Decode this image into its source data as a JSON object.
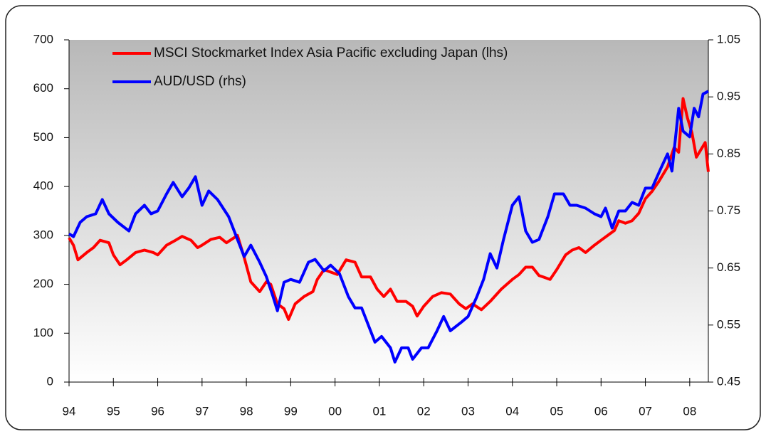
{
  "chart_data": {
    "type": "line",
    "xlim": [
      1994,
      2008.42
    ],
    "xticks": [
      {
        "value": 1994,
        "label": "94"
      },
      {
        "value": 1995,
        "label": "95"
      },
      {
        "value": 1996,
        "label": "96"
      },
      {
        "value": 1997,
        "label": "97"
      },
      {
        "value": 1998,
        "label": "98"
      },
      {
        "value": 1999,
        "label": "99"
      },
      {
        "value": 2000,
        "label": "00"
      },
      {
        "value": 2001,
        "label": "01"
      },
      {
        "value": 2002,
        "label": "02"
      },
      {
        "value": 2003,
        "label": "03"
      },
      {
        "value": 2004,
        "label": "04"
      },
      {
        "value": 2005,
        "label": "05"
      },
      {
        "value": 2006,
        "label": "06"
      },
      {
        "value": 2007,
        "label": "07"
      },
      {
        "value": 2008,
        "label": "08"
      }
    ],
    "ylim": [
      0,
      700
    ],
    "yticks": [
      0,
      100,
      200,
      300,
      400,
      500,
      600,
      700
    ],
    "y2lim": [
      0.45,
      1.05
    ],
    "y2ticks": [
      0.45,
      0.55,
      0.65,
      0.75,
      0.85,
      0.95,
      1.05
    ],
    "legend": "upper left",
    "series": [
      {
        "name": "MSCI Stockmarket Index Asia Pacific excluding Japan (lhs)",
        "color": "#ff0000",
        "axis": "y",
        "x": [
          1994.0,
          1994.1,
          1994.2,
          1994.4,
          1994.55,
          1994.7,
          1994.9,
          1995.0,
          1995.15,
          1995.3,
          1995.5,
          1995.7,
          1995.9,
          1996.0,
          1996.2,
          1996.4,
          1996.55,
          1996.75,
          1996.9,
          1997.0,
          1997.2,
          1997.4,
          1997.55,
          1997.8,
          1997.95,
          1998.1,
          1998.3,
          1998.45,
          1998.55,
          1998.7,
          1998.85,
          1998.95,
          1999.1,
          1999.3,
          1999.5,
          1999.6,
          1999.75,
          1999.9,
          2000.05,
          2000.25,
          2000.45,
          2000.6,
          2000.8,
          2000.95,
          2001.1,
          2001.25,
          2001.4,
          2001.6,
          2001.75,
          2001.85,
          2002.0,
          2002.2,
          2002.4,
          2002.6,
          2002.8,
          2002.95,
          2003.1,
          2003.3,
          2003.5,
          2003.75,
          2004.0,
          2004.15,
          2004.3,
          2004.45,
          2004.6,
          2004.85,
          2005.0,
          2005.2,
          2005.35,
          2005.5,
          2005.65,
          2005.85,
          2006.0,
          2006.15,
          2006.3,
          2006.4,
          2006.55,
          2006.7,
          2006.85,
          2007.0,
          2007.15,
          2007.3,
          2007.5,
          2007.65,
          2007.75,
          2007.85,
          2007.95,
          2008.05,
          2008.15,
          2008.25,
          2008.35,
          2008.42
        ],
        "values": [
          295,
          280,
          250,
          265,
          275,
          290,
          285,
          260,
          240,
          250,
          265,
          270,
          265,
          260,
          280,
          290,
          298,
          290,
          275,
          280,
          292,
          296,
          285,
          300,
          255,
          205,
          185,
          205,
          200,
          160,
          150,
          128,
          160,
          175,
          185,
          210,
          230,
          225,
          220,
          250,
          245,
          215,
          215,
          190,
          175,
          190,
          165,
          165,
          155,
          135,
          155,
          175,
          183,
          180,
          160,
          150,
          160,
          148,
          165,
          190,
          210,
          220,
          235,
          235,
          218,
          210,
          230,
          260,
          270,
          275,
          265,
          280,
          290,
          300,
          310,
          330,
          325,
          330,
          345,
          375,
          390,
          410,
          440,
          480,
          470,
          580,
          540,
          510,
          460,
          475,
          490,
          430
        ]
      },
      {
        "name": "AUD/USD (rhs)",
        "color": "#0000ff",
        "axis": "y2",
        "x": [
          1994.0,
          1994.1,
          1994.25,
          1994.4,
          1994.6,
          1994.75,
          1994.9,
          1995.1,
          1995.35,
          1995.5,
          1995.7,
          1995.85,
          1996.0,
          1996.2,
          1996.35,
          1996.55,
          1996.7,
          1996.85,
          1997.0,
          1997.15,
          1997.35,
          1997.6,
          1997.8,
          1997.95,
          1998.1,
          1998.3,
          1998.45,
          1998.6,
          1998.7,
          1998.85,
          1999.0,
          1999.2,
          1999.4,
          1999.55,
          1999.75,
          1999.9,
          2000.1,
          2000.3,
          2000.45,
          2000.6,
          2000.8,
          2000.9,
          2001.05,
          2001.25,
          2001.35,
          2001.5,
          2001.65,
          2001.75,
          2001.95,
          2002.1,
          2002.3,
          2002.45,
          2002.6,
          2002.85,
          2003.0,
          2003.2,
          2003.35,
          2003.5,
          2003.65,
          2003.8,
          2004.0,
          2004.15,
          2004.3,
          2004.45,
          2004.6,
          2004.8,
          2004.95,
          2005.15,
          2005.3,
          2005.45,
          2005.65,
          2005.85,
          2006.0,
          2006.1,
          2006.25,
          2006.4,
          2006.55,
          2006.7,
          2006.85,
          2007.0,
          2007.15,
          2007.35,
          2007.5,
          2007.6,
          2007.75,
          2007.85,
          2008.0,
          2008.1,
          2008.2,
          2008.3,
          2008.42
        ],
        "values": [
          0.71,
          0.705,
          0.73,
          0.74,
          0.745,
          0.77,
          0.745,
          0.73,
          0.715,
          0.745,
          0.76,
          0.745,
          0.75,
          0.78,
          0.8,
          0.775,
          0.79,
          0.81,
          0.76,
          0.785,
          0.77,
          0.74,
          0.7,
          0.67,
          0.69,
          0.66,
          0.635,
          0.6,
          0.575,
          0.625,
          0.63,
          0.625,
          0.66,
          0.665,
          0.645,
          0.655,
          0.64,
          0.6,
          0.58,
          0.58,
          0.54,
          0.52,
          0.53,
          0.51,
          0.485,
          0.51,
          0.51,
          0.49,
          0.51,
          0.51,
          0.54,
          0.565,
          0.54,
          0.555,
          0.565,
          0.6,
          0.63,
          0.675,
          0.65,
          0.7,
          0.76,
          0.775,
          0.715,
          0.695,
          0.7,
          0.74,
          0.78,
          0.78,
          0.76,
          0.76,
          0.755,
          0.745,
          0.74,
          0.755,
          0.72,
          0.75,
          0.75,
          0.765,
          0.76,
          0.79,
          0.79,
          0.825,
          0.85,
          0.82,
          0.93,
          0.89,
          0.88,
          0.93,
          0.915,
          0.955,
          0.96
        ]
      }
    ]
  }
}
